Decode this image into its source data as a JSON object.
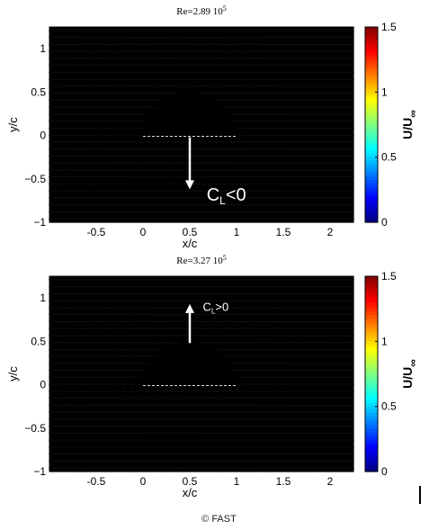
{
  "chart_data": [
    {
      "type": "heatmap",
      "title_base": "Re=2.89 10",
      "title_exp": "5",
      "xlabel": "x/c",
      "ylabel": "y/c",
      "xlim": [
        -1,
        2.25
      ],
      "ylim": [
        -1,
        1.25
      ],
      "xticks": [
        -0.5,
        0,
        0.5,
        1,
        1.5,
        2
      ],
      "xtick_labels": [
        "-0.5",
        "0",
        "0.5",
        "1",
        "1.5",
        "2"
      ],
      "yticks": [
        1,
        0.5,
        0,
        -0.5,
        -1
      ],
      "ytick_labels": [
        "1",
        "0.5",
        "0",
        "−0.5",
        "−1"
      ],
      "colorbar": {
        "label_main": "U/U",
        "label_sub": "∞",
        "range": [
          0,
          1.5
        ],
        "ticks": [
          1.5,
          1,
          0.5,
          0
        ],
        "tick_labels": [
          "1.5",
          "1",
          "0.5",
          "0"
        ]
      },
      "annotation": {
        "main": "C",
        "sub": "L",
        "rel": "<0"
      },
      "lift_direction": "down",
      "wake_strength": 1.0,
      "grid": false
    },
    {
      "type": "heatmap",
      "title_base": "Re=3.27 10",
      "title_exp": "5",
      "xlabel": "x/c",
      "ylabel": "y/c",
      "xlim": [
        -1,
        2.25
      ],
      "ylim": [
        -1,
        1.25
      ],
      "xticks": [
        -0.5,
        0,
        0.5,
        1,
        1.5,
        2
      ],
      "xtick_labels": [
        "-0.5",
        "0",
        "0.5",
        "1",
        "1.5",
        "2"
      ],
      "yticks": [
        1,
        0.5,
        0,
        -0.5,
        -1
      ],
      "ytick_labels": [
        "1",
        "0.5",
        "0",
        "−0.5",
        "−1"
      ],
      "colorbar": {
        "label_main": "U/U",
        "label_sub": "∞",
        "range": [
          0,
          1.5
        ],
        "ticks": [
          1.5,
          1,
          0.5,
          0
        ],
        "tick_labels": [
          "1.5",
          "1",
          "0.5",
          "0"
        ]
      },
      "annotation": {
        "main": "C",
        "sub": "L",
        "rel": ">0"
      },
      "lift_direction": "up",
      "wake_strength": 0.55,
      "grid": false
    }
  ],
  "credit": "© FAST"
}
